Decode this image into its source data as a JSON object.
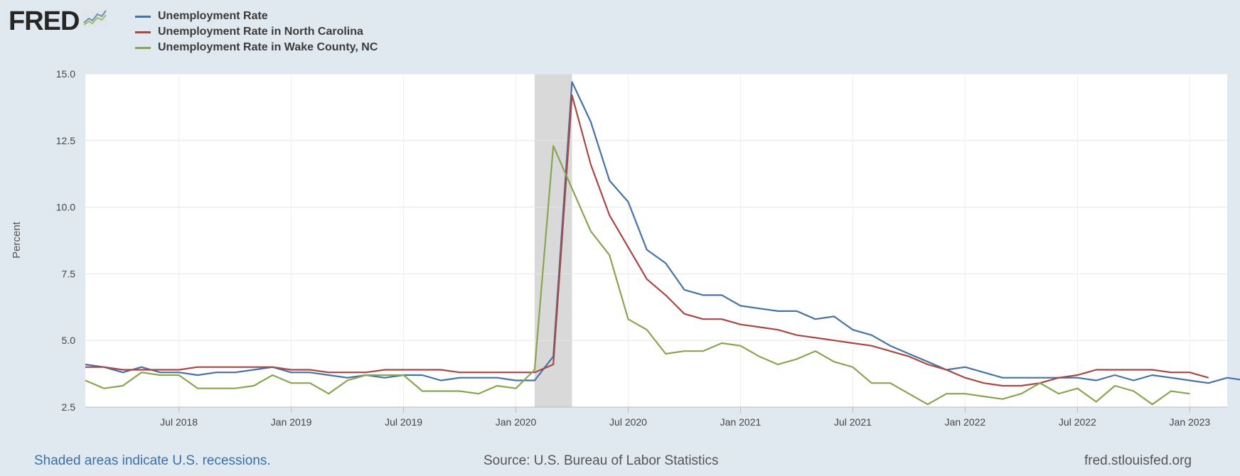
{
  "logo": {
    "text": "FRED"
  },
  "footer": {
    "recession_note": "Shaded areas indicate U.S. recessions.",
    "source": "Source: U.S. Bureau of Labor Statistics",
    "site": "fred.stlouisfed.org"
  },
  "chart_data": {
    "type": "line",
    "title": "",
    "xlabel": "",
    "ylabel": "Percent",
    "ylim": [
      2.5,
      15.0
    ],
    "yticks": [
      "2.5",
      "5.0",
      "7.5",
      "10.0",
      "12.5",
      "15.0"
    ],
    "xlim": [
      "2018-02",
      "2023-03"
    ],
    "xticks": [
      {
        "label": "Jul 2018",
        "date": "2018-07"
      },
      {
        "label": "Jan 2019",
        "date": "2019-01"
      },
      {
        "label": "Jul 2019",
        "date": "2019-07"
      },
      {
        "label": "Jan 2020",
        "date": "2020-01"
      },
      {
        "label": "Jul 2020",
        "date": "2020-07"
      },
      {
        "label": "Jan 2021",
        "date": "2021-01"
      },
      {
        "label": "Jul 2021",
        "date": "2021-07"
      },
      {
        "label": "Jan 2022",
        "date": "2022-01"
      },
      {
        "label": "Jul 2022",
        "date": "2022-07"
      },
      {
        "label": "Jan 2023",
        "date": "2023-01"
      }
    ],
    "grid": true,
    "legend_position": "top-left",
    "recession": {
      "start": "2020-02",
      "end": "2020-04"
    },
    "series": [
      {
        "name": "Unemployment Rate",
        "color": "#4572a7",
        "start": "2018-02",
        "values": [
          4.1,
          4.0,
          3.8,
          4.0,
          3.8,
          3.8,
          3.7,
          3.8,
          3.8,
          3.9,
          4.0,
          3.8,
          3.8,
          3.7,
          3.6,
          3.7,
          3.6,
          3.7,
          3.7,
          3.5,
          3.6,
          3.6,
          3.6,
          3.5,
          3.5,
          4.4,
          14.7,
          13.2,
          11.0,
          10.2,
          8.4,
          7.9,
          6.9,
          6.7,
          6.7,
          6.3,
          6.2,
          6.1,
          6.1,
          5.8,
          5.9,
          5.4,
          5.2,
          4.8,
          4.5,
          4.2,
          3.9,
          4.0,
          3.8,
          3.6,
          3.6,
          3.6,
          3.6,
          3.6,
          3.5,
          3.7,
          3.5,
          3.7,
          3.6,
          3.5,
          3.4,
          3.6,
          3.5
        ]
      },
      {
        "name": "Unemployment Rate in North Carolina",
        "color": "#aa4643",
        "start": "2018-02",
        "values": [
          4.0,
          4.0,
          3.9,
          3.9,
          3.9,
          3.9,
          4.0,
          4.0,
          4.0,
          4.0,
          4.0,
          3.9,
          3.9,
          3.8,
          3.8,
          3.8,
          3.9,
          3.9,
          3.9,
          3.9,
          3.8,
          3.8,
          3.8,
          3.8,
          3.8,
          4.1,
          14.2,
          11.6,
          9.7,
          8.5,
          7.3,
          6.7,
          6.0,
          5.8,
          5.8,
          5.6,
          5.5,
          5.4,
          5.2,
          5.1,
          5.0,
          4.9,
          4.8,
          4.6,
          4.4,
          4.1,
          3.9,
          3.6,
          3.4,
          3.3,
          3.3,
          3.4,
          3.6,
          3.7,
          3.9,
          3.9,
          3.9,
          3.9,
          3.8,
          3.8,
          3.6
        ]
      },
      {
        "name": "Unemployment Rate in Wake County, NC",
        "color": "#89a54e",
        "start": "2018-02",
        "values": [
          3.5,
          3.2,
          3.3,
          3.8,
          3.7,
          3.7,
          3.2,
          3.2,
          3.2,
          3.3,
          3.7,
          3.4,
          3.4,
          3.0,
          3.5,
          3.7,
          3.7,
          3.7,
          3.1,
          3.1,
          3.1,
          3.0,
          3.3,
          3.2,
          3.9,
          12.3,
          10.7,
          9.1,
          8.2,
          5.8,
          5.4,
          4.5,
          4.6,
          4.6,
          4.9,
          4.8,
          4.4,
          4.1,
          4.3,
          4.6,
          4.2,
          4.0,
          3.4,
          3.4,
          3.0,
          2.6,
          3.0,
          3.0,
          2.9,
          2.8,
          3.0,
          3.4,
          3.0,
          3.2,
          2.7,
          3.3,
          3.1,
          2.6,
          3.1,
          3.0
        ]
      }
    ]
  }
}
